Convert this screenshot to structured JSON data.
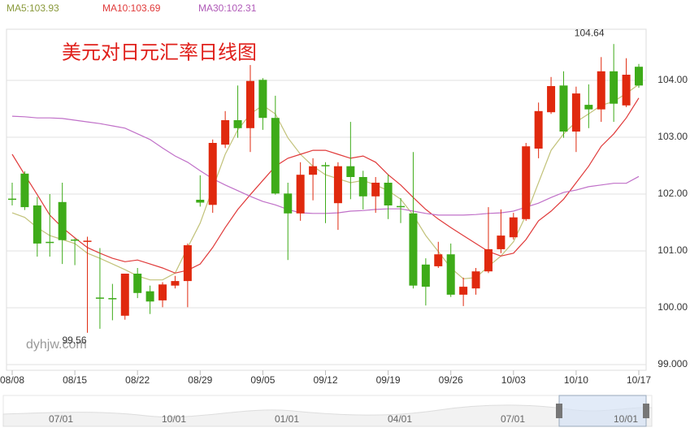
{
  "chart_data": {
    "type": "candlestick",
    "title": "美元对日元汇率日线图",
    "watermark": "dyhjw.com",
    "categories": [
      "08/08",
      null,
      null,
      null,
      null,
      "08/15",
      null,
      null,
      null,
      null,
      "08/22",
      null,
      null,
      null,
      null,
      "08/29",
      null,
      null,
      null,
      null,
      "09/05",
      null,
      null,
      null,
      null,
      "09/12",
      null,
      null,
      null,
      null,
      "09/19",
      null,
      null,
      null,
      null,
      "09/26",
      null,
      null,
      null,
      null,
      "10/03",
      null,
      null,
      null,
      null,
      "10/10",
      null,
      null,
      null,
      null,
      "10/17"
    ],
    "open": [
      101.92,
      102.36,
      101.8,
      101.16,
      101.86,
      101.2,
      101.18,
      100.18,
      100.17,
      99.86,
      100.6,
      100.29,
      100.13,
      100.39,
      100.47,
      101.9,
      101.81,
      102.87,
      103.3,
      103.16,
      104.01,
      103.34,
      102.01,
      101.66,
      102.34,
      102.51,
      101.84,
      102.49,
      102.3,
      101.96,
      102.2,
      101.79,
      101.66,
      100.76,
      100.73,
      100.94,
      100.23,
      100.34,
      100.64,
      101.03,
      101.24,
      101.56,
      102.8,
      103.44,
      103.91,
      103.1,
      103.57,
      103.49,
      104.16,
      103.56,
      104.24
    ],
    "high": [
      102.2,
      102.4,
      101.95,
      102.0,
      102.2,
      101.22,
      101.25,
      101.05,
      100.42,
      100.6,
      100.7,
      100.39,
      100.45,
      100.56,
      101.13,
      102.33,
      102.96,
      103.46,
      103.91,
      104.27,
      104.04,
      103.73,
      102.2,
      102.56,
      102.63,
      102.56,
      102.56,
      103.27,
      102.41,
      102.3,
      102.34,
      101.93,
      102.74,
      100.87,
      101.16,
      101.13,
      100.53,
      100.7,
      101.77,
      101.73,
      101.67,
      102.9,
      103.61,
      104.06,
      104.16,
      103.89,
      103.93,
      104.41,
      104.64,
      104.39,
      104.29
    ],
    "low": [
      101.8,
      101.72,
      100.9,
      100.9,
      100.77,
      100.75,
      99.56,
      99.63,
      99.78,
      99.79,
      100.17,
      99.89,
      100.01,
      100.34,
      100.01,
      101.78,
      101.67,
      102.81,
      102.99,
      102.74,
      103.13,
      101.99,
      100.84,
      101.53,
      101.89,
      101.49,
      101.37,
      101.91,
      101.73,
      101.67,
      101.56,
      101.49,
      100.34,
      100.04,
      100.7,
      100.19,
      100.03,
      100.23,
      100.61,
      100.96,
      101.2,
      101.53,
      102.63,
      103.41,
      102.99,
      102.74,
      103.16,
      103.27,
      103.27,
      103.53,
      103.87
    ],
    "close": [
      101.9,
      101.77,
      101.13,
      101.15,
      101.19,
      101.18,
      101.18,
      100.16,
      100.16,
      100.6,
      100.26,
      100.11,
      100.41,
      100.47,
      101.1,
      101.85,
      102.9,
      103.3,
      103.16,
      103.99,
      103.34,
      102.01,
      101.66,
      102.34,
      102.49,
      102.5,
      102.49,
      102.3,
      101.96,
      102.2,
      101.8,
      101.78,
      100.39,
      100.37,
      100.94,
      100.23,
      100.37,
      100.64,
      101.03,
      101.27,
      101.59,
      102.84,
      103.46,
      103.9,
      103.1,
      103.77,
      103.49,
      104.16,
      103.59,
      104.1,
      103.91
    ],
    "up_color": "#e0290e",
    "down_color": "#3eab19",
    "lines": [
      {
        "label": "MA5:103.93",
        "color": "#c2c27a",
        "text_color": "#8a9a3c",
        "values": [
          101.67,
          101.59,
          101.41,
          101.27,
          101.2,
          101.13,
          100.96,
          100.87,
          100.77,
          100.67,
          100.56,
          100.49,
          100.49,
          100.61,
          101.06,
          101.49,
          102.1,
          102.7,
          103.13,
          103.41,
          103.56,
          103.41,
          102.99,
          102.7,
          102.49,
          102.34,
          102.27,
          102.2,
          102.24,
          102.16,
          102.06,
          101.91,
          101.63,
          101.27,
          100.99,
          100.7,
          100.51,
          100.53,
          100.73,
          100.91,
          101.16,
          101.63,
          102.2,
          102.77,
          103.06,
          103.27,
          103.41,
          103.56,
          103.63,
          103.77,
          103.93
        ]
      },
      {
        "label": "MA10:103.69",
        "color": "#e03a3a",
        "text_color": "#e03a3a",
        "values": [
          102.7,
          102.34,
          101.99,
          101.63,
          101.41,
          101.23,
          101.06,
          100.96,
          100.87,
          100.81,
          100.84,
          100.77,
          100.7,
          100.61,
          100.66,
          100.77,
          101.06,
          101.41,
          101.73,
          101.99,
          102.24,
          102.49,
          102.63,
          102.7,
          102.77,
          102.77,
          102.7,
          102.63,
          102.67,
          102.56,
          102.34,
          102.16,
          101.94,
          101.73,
          101.56,
          101.41,
          101.27,
          101.13,
          100.99,
          100.91,
          100.96,
          101.2,
          101.53,
          101.7,
          101.91,
          102.2,
          102.49,
          102.84,
          103.06,
          103.34,
          103.69
        ]
      },
      {
        "label": "MA30:102.31",
        "color": "#c070c8",
        "text_color": "#b05ab8",
        "values": [
          103.37,
          103.36,
          103.34,
          103.34,
          103.33,
          103.3,
          103.27,
          103.24,
          103.2,
          103.16,
          103.06,
          102.96,
          102.81,
          102.67,
          102.56,
          102.41,
          102.27,
          102.16,
          102.06,
          101.96,
          101.87,
          101.81,
          101.73,
          101.67,
          101.66,
          101.66,
          101.67,
          101.7,
          101.71,
          101.73,
          101.74,
          101.74,
          101.7,
          101.66,
          101.63,
          101.63,
          101.63,
          101.64,
          101.66,
          101.67,
          101.7,
          101.77,
          101.84,
          101.94,
          102.03,
          102.07,
          102.13,
          102.16,
          102.19,
          102.19,
          102.31
        ]
      }
    ],
    "ylim": [
      98.9,
      104.9
    ],
    "yticks": [
      {
        "value": 99,
        "label": "99.000"
      },
      {
        "value": 100,
        "label": "100.00"
      },
      {
        "value": 101,
        "label": "101.00"
      },
      {
        "value": 102,
        "label": "102.00"
      },
      {
        "value": 103,
        "label": "103.00"
      },
      {
        "value": 104,
        "label": "104.00"
      }
    ],
    "grid": true,
    "max_index": 48,
    "min_index": 6,
    "navigator": {
      "labels": [
        "07/01",
        "10/01",
        "01/01",
        "04/01",
        "07/01",
        "10/01"
      ]
    }
  }
}
